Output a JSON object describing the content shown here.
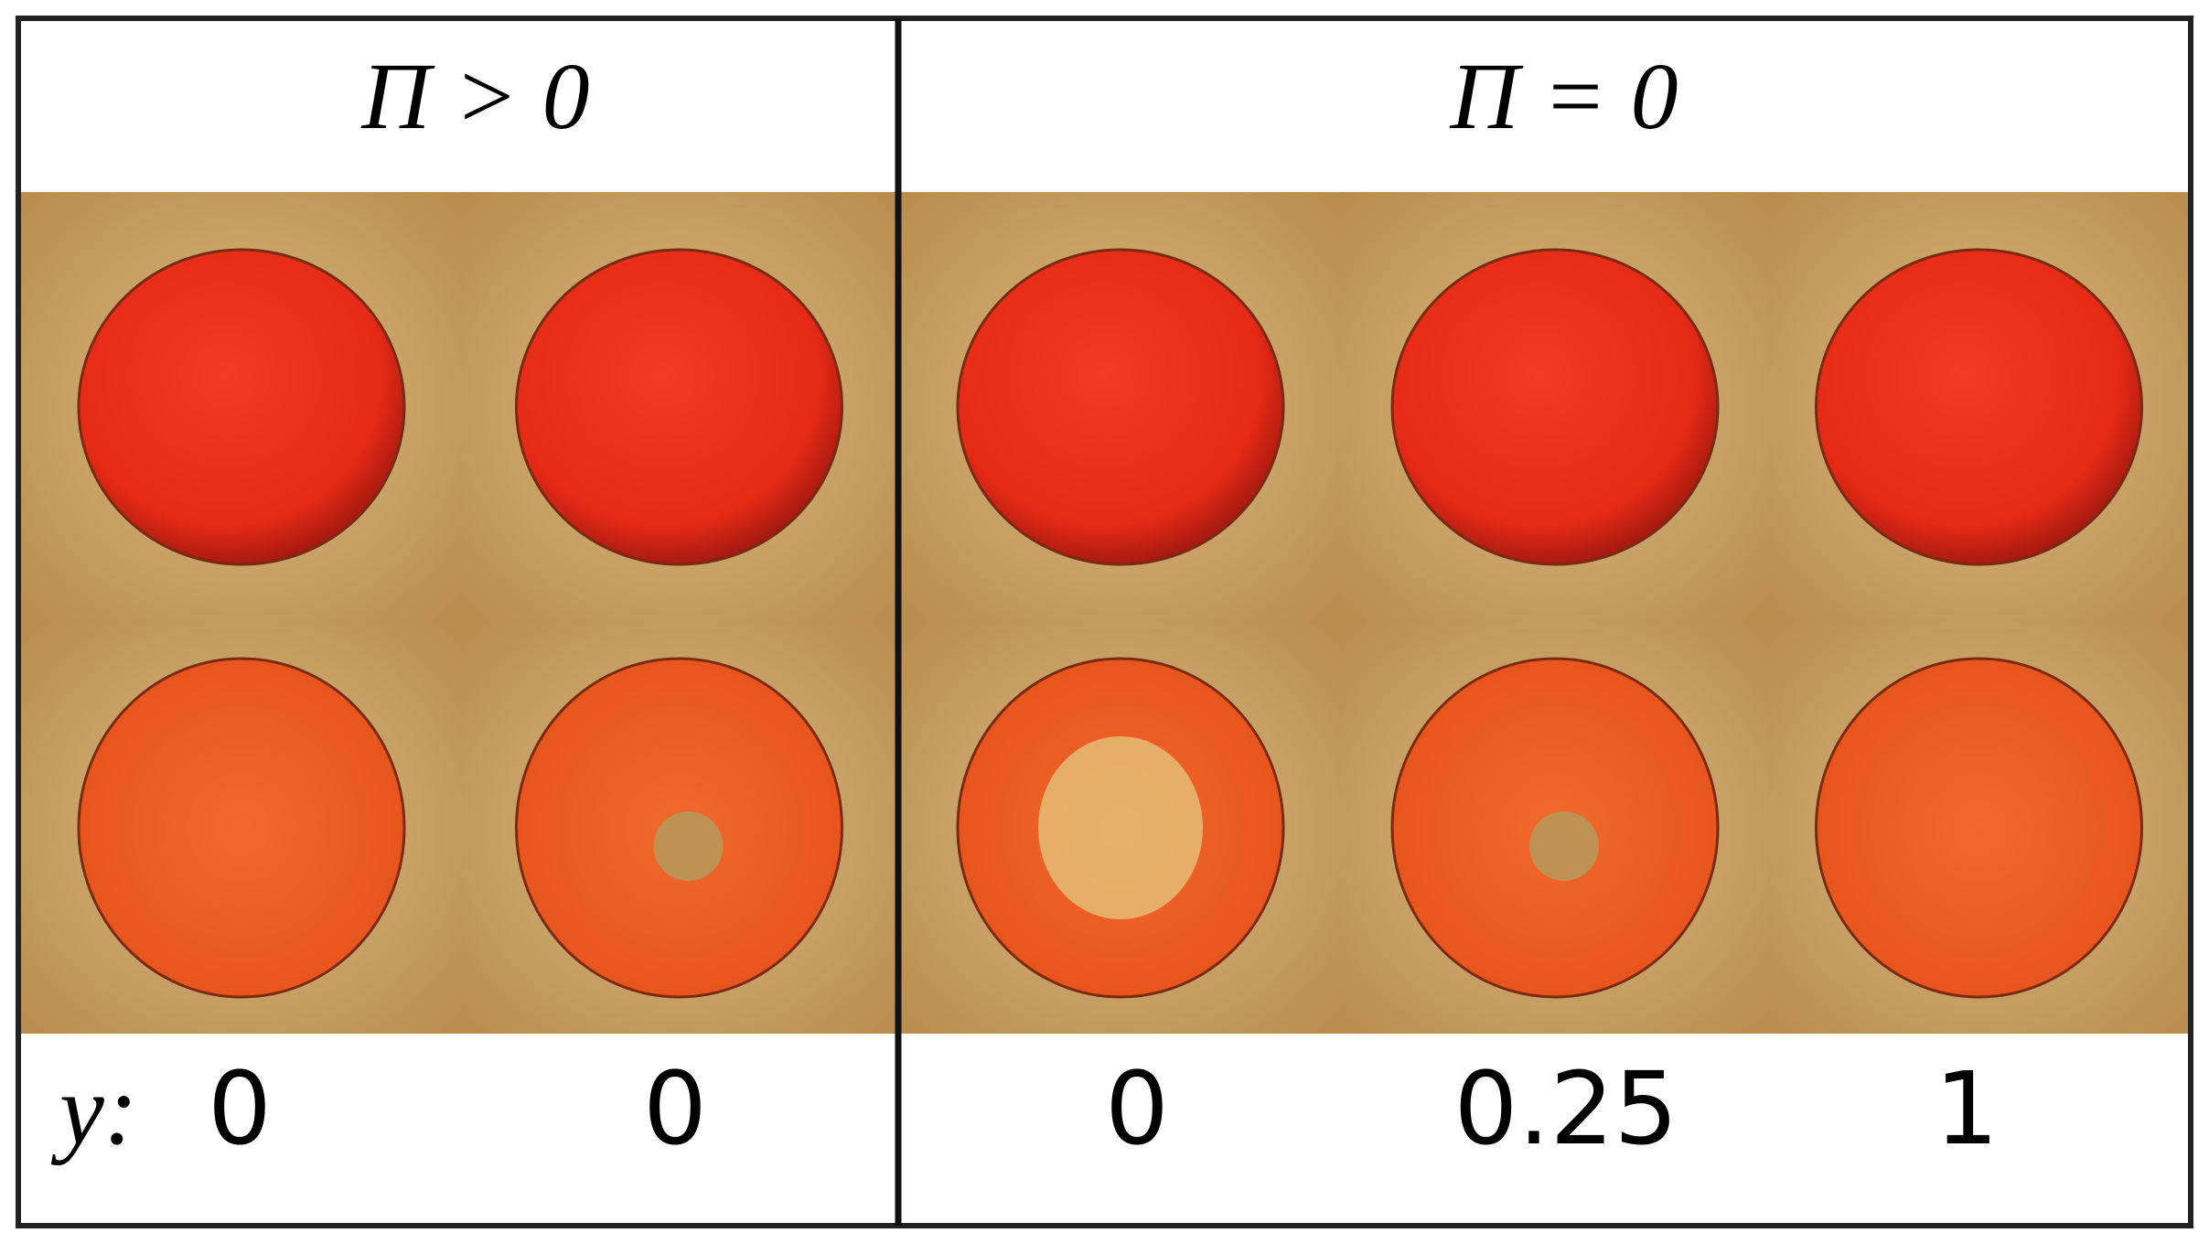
{
  "panels": [
    {
      "header": "Π > 0",
      "labels": [
        "0",
        "0"
      ]
    },
    {
      "header": "Π = 0",
      "labels": [
        "0",
        "0.25",
        "1"
      ]
    }
  ],
  "label_prefix": "y:"
}
